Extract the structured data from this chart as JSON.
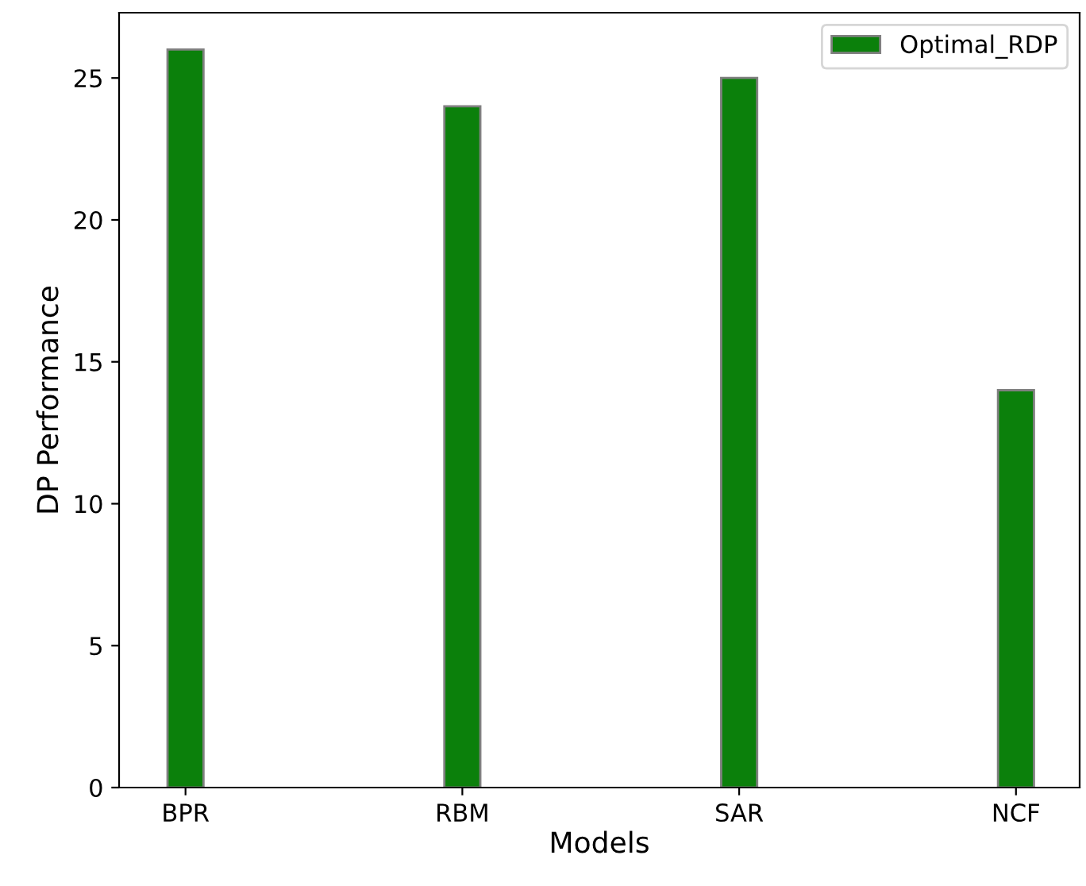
{
  "chart_data": {
    "type": "bar",
    "xlabel": "Models",
    "ylabel": "DP Performance",
    "categories": [
      "BPR",
      "RBM",
      "SAR",
      "NCF"
    ],
    "series": [
      {
        "name": "Optimal_RDP",
        "color": "#0b800b",
        "values": [
          26,
          24,
          25,
          14
        ]
      }
    ],
    "ylim": [
      0,
      27.3
    ],
    "yticks": [
      0,
      5,
      10,
      15,
      20,
      25
    ],
    "grid": false,
    "legend": "top right"
  }
}
